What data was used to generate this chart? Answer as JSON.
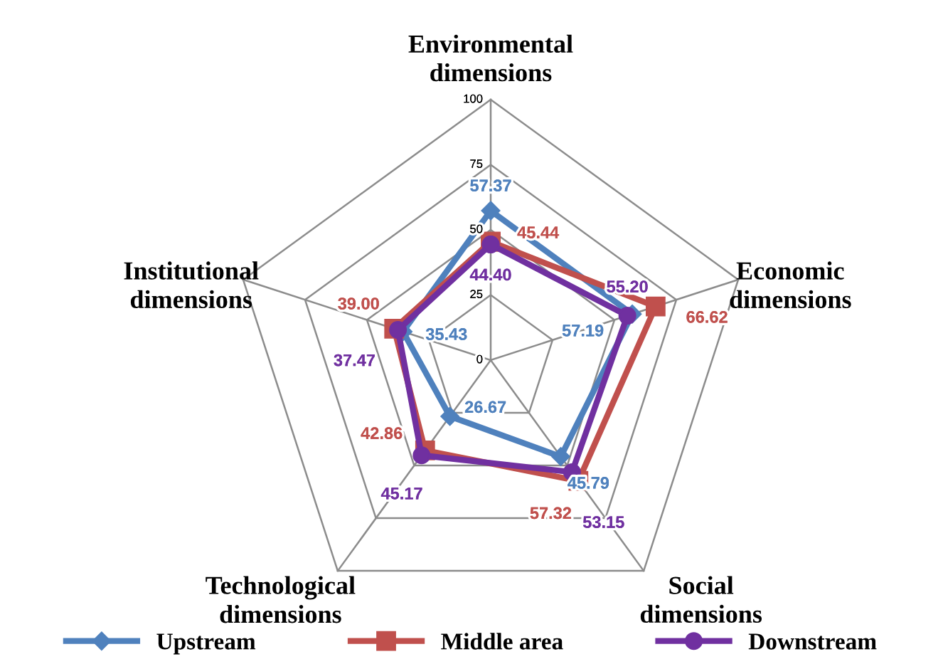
{
  "chart_data": {
    "type": "radar",
    "categories": [
      "Environmental\ndimensions",
      "Economic\ndimensions",
      "Social\ndimensions",
      "Technological\ndimensions",
      "Institutional\ndimensions"
    ],
    "ylim": [
      0,
      100
    ],
    "yticks": [
      0,
      25,
      50,
      75,
      100
    ],
    "grid": true,
    "legend": "bottom",
    "series": [
      {
        "name": "Upstream",
        "color": "#4f81bd",
        "marker": "diamond",
        "values": [
          57.37,
          57.19,
          45.79,
          26.67,
          35.43
        ],
        "value_labels": [
          "57.37",
          "57.19",
          "45.79",
          "26.67",
          "35.43"
        ]
      },
      {
        "name": "Middle area",
        "color": "#c0504d",
        "marker": "square",
        "values": [
          45.44,
          66.62,
          57.32,
          42.86,
          39.0
        ],
        "value_labels": [
          "45.44",
          "66.62",
          "57.32",
          "42.86",
          "39.00"
        ]
      },
      {
        "name": "Downstream",
        "color": "#7030a0",
        "marker": "circle",
        "values": [
          44.4,
          55.2,
          53.15,
          45.17,
          37.47
        ],
        "value_labels": [
          "44.40",
          "55.20",
          "53.15",
          "45.17",
          "37.47"
        ]
      }
    ]
  }
}
